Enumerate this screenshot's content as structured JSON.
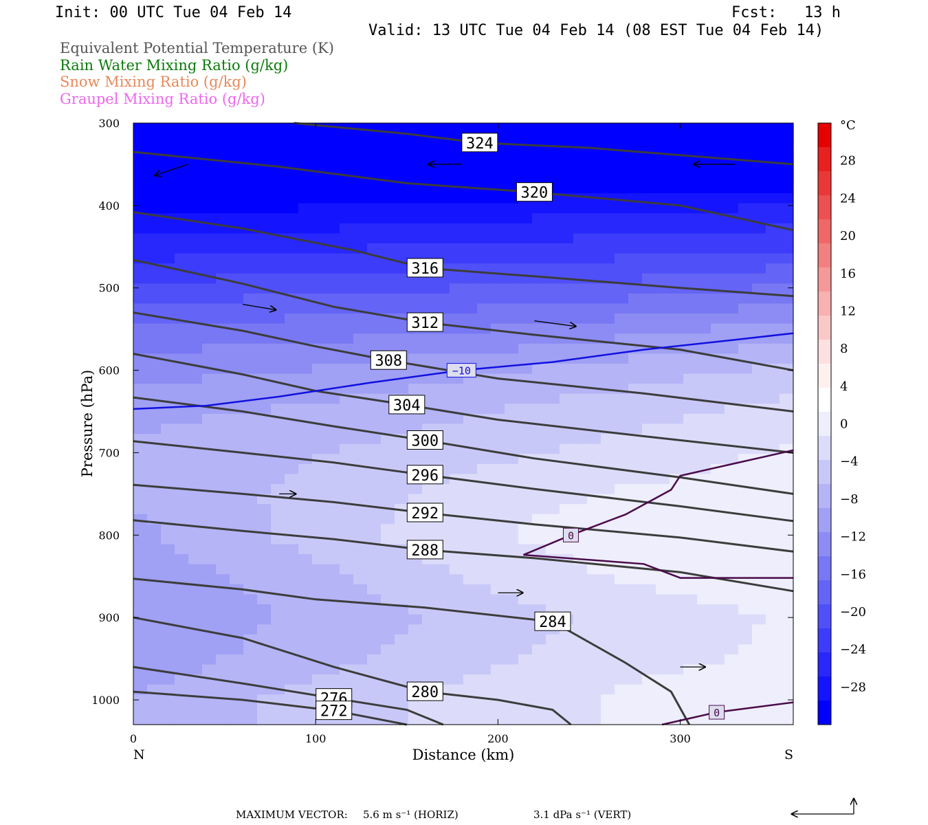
{
  "header": {
    "init": "Init: 00 UTC Tue 04 Feb 14",
    "fcst": "Fcst:   13 h",
    "valid": "Valid: 13 UTC Tue 04 Feb 14 (08 EST Tue 04 Feb 14)"
  },
  "legend": [
    {
      "label": "Equivalent Potential Temperature (K)",
      "color": "#555555"
    },
    {
      "label": "Rain Water Mixing Ratio (g/kg)",
      "color": "#0a7a0a"
    },
    {
      "label": "Snow Mixing Ratio (g/kg)",
      "color": "#e8885a"
    },
    {
      "label": "Graupel Mixing Ratio (g/kg)",
      "color": "#ee66ee"
    }
  ],
  "footer": {
    "label": "MAXIMUM VECTOR:",
    "horiz": "5.6 m s⁻¹ (HORIZ)",
    "vert": "3.1 dPa s⁻¹ (VERT)"
  },
  "chart_data": {
    "type": "heatmap",
    "xlabel": "Distance (km)",
    "ylabel": "Pressure (hPa)",
    "xlim": [
      0,
      362
    ],
    "ylim": [
      1030,
      300
    ],
    "x_ticks": [
      "0",
      "100",
      "200",
      "300"
    ],
    "x_tick_values": [
      0,
      100,
      200,
      300
    ],
    "x_end_labels": {
      "left": "N",
      "right": "S"
    },
    "y_ticks": [
      "300",
      "400",
      "500",
      "600",
      "700",
      "800",
      "900",
      "1000"
    ],
    "y_tick_values": [
      300,
      400,
      500,
      600,
      700,
      800,
      900,
      1000
    ],
    "colorbar": {
      "unit": "°C",
      "tick_labels": [
        "28",
        "24",
        "20",
        "16",
        "12",
        "8",
        "4",
        "0",
        "−4",
        "−8",
        "−12",
        "−16",
        "−20",
        "−24",
        "−28"
      ],
      "tick_values": [
        28,
        24,
        20,
        16,
        12,
        8,
        4,
        0,
        -4,
        -8,
        -12,
        -16,
        -20,
        -24,
        -28
      ],
      "range": [
        -32,
        32
      ],
      "colors_cold_to_warm": [
        "#0000ff",
        "#1414ff",
        "#2828fc",
        "#3c3cfa",
        "#5050f8",
        "#6464f6",
        "#7878f4",
        "#8c8cf4",
        "#a0a0f4",
        "#b4b4f6",
        "#c8c8f8",
        "#dcdcfa",
        "#eeeefc",
        "#ffffff",
        "#fff0f0",
        "#fde0e0",
        "#fbc8c8",
        "#f8b0b0",
        "#f59898",
        "#f28080",
        "#ef6868",
        "#ec5050",
        "#ea3838",
        "#e82020",
        "#e60000"
      ]
    },
    "temperature_field_C": {
      "levels": [
        300,
        350,
        400,
        450,
        500,
        550,
        600,
        650,
        700,
        750,
        800,
        850,
        900,
        950,
        1000
      ],
      "x": [
        0,
        90,
        180,
        270,
        360
      ],
      "values": [
        [
          -44,
          -43,
          -42,
          -42,
          -41
        ],
        [
          -38,
          -37,
          -36,
          -35,
          -35
        ],
        [
          -32,
          -31,
          -30,
          -29,
          -28
        ],
        [
          -27,
          -26,
          -25,
          -24,
          -23
        ],
        [
          -22,
          -21,
          -20,
          -19,
          -17
        ],
        [
          -17,
          -16,
          -15,
          -13,
          -11
        ],
        [
          -13,
          -12,
          -10,
          -8,
          -6
        ],
        [
          -10,
          -9,
          -7,
          -5,
          -3
        ],
        [
          -9,
          -7,
          -5,
          -3,
          -1
        ],
        [
          -9,
          -6,
          -3,
          -1,
          0.5
        ],
        [
          -10,
          -6,
          -2,
          0.5,
          1
        ],
        [
          -11,
          -8,
          -4,
          -1,
          0.5
        ],
        [
          -12,
          -9,
          -6,
          -3,
          -1
        ],
        [
          -11,
          -8,
          -5,
          -2,
          -1
        ],
        [
          -9,
          -6,
          -3,
          -1,
          1
        ]
      ]
    },
    "theta_e_contours_K": [
      {
        "label": "324",
        "points": [
          [
            88,
            300
          ],
          [
            150,
            313
          ],
          [
            190,
            324
          ],
          [
            250,
            330
          ],
          [
            362,
            350
          ]
        ]
      },
      {
        "label": "320",
        "points": [
          [
            0,
            335
          ],
          [
            80,
            353
          ],
          [
            150,
            373
          ],
          [
            220,
            384
          ],
          [
            300,
            400
          ],
          [
            362,
            430
          ]
        ]
      },
      {
        "label": "316",
        "points": [
          [
            0,
            408
          ],
          [
            60,
            428
          ],
          [
            120,
            454
          ],
          [
            160,
            476
          ],
          [
            220,
            486
          ],
          [
            300,
            500
          ],
          [
            362,
            510
          ]
        ]
      },
      {
        "label": "312",
        "points": [
          [
            0,
            466
          ],
          [
            60,
            495
          ],
          [
            110,
            523
          ],
          [
            160,
            542
          ],
          [
            220,
            557
          ],
          [
            300,
            575
          ],
          [
            362,
            600
          ]
        ]
      },
      {
        "label": "308",
        "points": [
          [
            0,
            530
          ],
          [
            60,
            552
          ],
          [
            100,
            571
          ],
          [
            140,
            588
          ],
          [
            200,
            610
          ],
          [
            280,
            628
          ],
          [
            362,
            650
          ]
        ]
      },
      {
        "label": "304",
        "points": [
          [
            0,
            580
          ],
          [
            60,
            605
          ],
          [
            100,
            625
          ],
          [
            150,
            642
          ],
          [
            200,
            660
          ],
          [
            280,
            680
          ],
          [
            362,
            700
          ]
        ]
      },
      {
        "label": "300",
        "points": [
          [
            0,
            633
          ],
          [
            60,
            650
          ],
          [
            110,
            668
          ],
          [
            160,
            685
          ],
          [
            220,
            707
          ],
          [
            300,
            730
          ],
          [
            362,
            750
          ]
        ]
      },
      {
        "label": "296",
        "points": [
          [
            0,
            686
          ],
          [
            60,
            700
          ],
          [
            110,
            712
          ],
          [
            160,
            727
          ],
          [
            220,
            744
          ],
          [
            300,
            765
          ],
          [
            362,
            783
          ]
        ]
      },
      {
        "label": "292",
        "points": [
          [
            0,
            739
          ],
          [
            60,
            750
          ],
          [
            110,
            760
          ],
          [
            160,
            773
          ],
          [
            220,
            787
          ],
          [
            300,
            803
          ],
          [
            362,
            820
          ]
        ]
      },
      {
        "label": "288",
        "points": [
          [
            0,
            782
          ],
          [
            60,
            795
          ],
          [
            110,
            805
          ],
          [
            160,
            818
          ],
          [
            220,
            828
          ],
          [
            300,
            845
          ],
          [
            362,
            868
          ]
        ]
      },
      {
        "label": "284",
        "points": [
          [
            0,
            853
          ],
          [
            60,
            866
          ],
          [
            100,
            878
          ],
          [
            160,
            888
          ],
          [
            230,
            905
          ],
          [
            270,
            955
          ],
          [
            295,
            990
          ],
          [
            305,
            1030
          ]
        ]
      },
      {
        "label": "280",
        "points": [
          [
            0,
            900
          ],
          [
            60,
            925
          ],
          [
            110,
            960
          ],
          [
            160,
            990
          ],
          [
            200,
            1000
          ],
          [
            230,
            1012
          ],
          [
            240,
            1030
          ]
        ]
      },
      {
        "label": "276",
        "points": [
          [
            0,
            960
          ],
          [
            60,
            980
          ],
          [
            110,
            998
          ],
          [
            150,
            1012
          ],
          [
            170,
            1030
          ]
        ]
      },
      {
        "label": "272",
        "points": [
          [
            0,
            990
          ],
          [
            60,
            1000
          ],
          [
            110,
            1013
          ],
          [
            150,
            1030
          ]
        ]
      }
    ],
    "isotherms_C": [
      {
        "label": "−10",
        "points": [
          [
            0,
            647
          ],
          [
            40,
            643
          ],
          [
            80,
            632
          ],
          [
            130,
            615
          ],
          [
            180,
            600
          ],
          [
            230,
            590
          ],
          [
            280,
            575
          ],
          [
            330,
            563
          ],
          [
            362,
            555
          ]
        ]
      },
      {
        "label": "0",
        "points": [
          [
            362,
            697
          ],
          [
            330,
            713
          ],
          [
            300,
            728
          ],
          [
            295,
            745
          ],
          [
            270,
            775
          ],
          [
            240,
            800
          ],
          [
            214,
            824
          ],
          [
            280,
            835
          ],
          [
            300,
            852
          ],
          [
            362,
            852
          ]
        ]
      },
      {
        "label": "0",
        "points": [
          [
            290,
            1030
          ],
          [
            320,
            1015
          ],
          [
            362,
            1003
          ]
        ]
      }
    ],
    "wind_vectors_sample": [
      {
        "x": 30,
        "p": 350,
        "u": -4,
        "w": -2
      },
      {
        "x": 180,
        "p": 350,
        "u": -4,
        "w": 0
      },
      {
        "x": 330,
        "p": 350,
        "u": -5,
        "w": 0
      },
      {
        "x": 60,
        "p": 520,
        "u": 4,
        "w": -1
      },
      {
        "x": 220,
        "p": 540,
        "u": 5,
        "w": -1
      },
      {
        "x": 80,
        "p": 750,
        "u": 2,
        "w": 0
      },
      {
        "x": 200,
        "p": 870,
        "u": 3,
        "w": 0
      },
      {
        "x": 300,
        "p": 960,
        "u": 3,
        "w": 0
      }
    ]
  }
}
